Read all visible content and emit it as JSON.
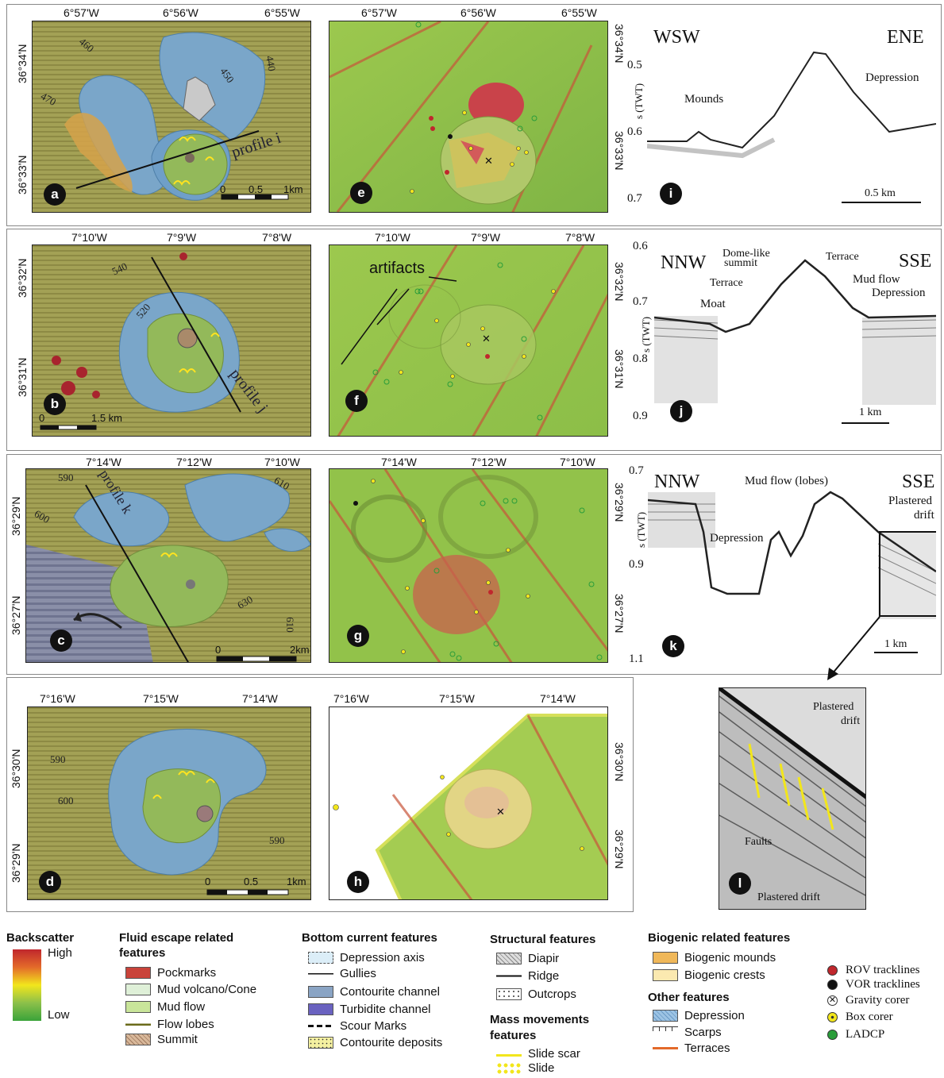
{
  "rows": {
    "row1": {
      "map_a": {
        "label": "a",
        "lon_ticks": [
          "6°57'W",
          "6°56'W",
          "6°55'W"
        ],
        "lat_ticks": [
          "36°34'N",
          "36°33'N"
        ],
        "contours": [
          "460",
          "450",
          "440",
          "470"
        ],
        "profile_label": "profile i",
        "scale": {
          "zero": "0",
          "mid": "0.5",
          "end": "1km"
        }
      },
      "map_e": {
        "label": "e",
        "lon_ticks": [
          "6°57'W",
          "6°56'W",
          "6°55'W"
        ],
        "lat_ticks": [
          "36°34'N",
          "36°33'N"
        ]
      },
      "seis_i": {
        "label": "i",
        "left_dir": "WSW",
        "right_dir": "ENE",
        "axis_title": "s (TWT)",
        "ticks": [
          "0.5",
          "0.6",
          "0.7"
        ],
        "annotations": {
          "mounds": "Mounds",
          "depression": "Depression"
        },
        "scale": "0.5 km"
      }
    },
    "row2": {
      "map_b": {
        "label": "b",
        "lon_ticks": [
          "7°10'W",
          "7°9'W",
          "7°8'W"
        ],
        "lat_ticks": [
          "36°32'N",
          "36°31'N"
        ],
        "contours": [
          "540",
          "520"
        ],
        "profile_label": "profile j",
        "scale": {
          "zero": "0",
          "end": "1.5 km"
        }
      },
      "map_f": {
        "label": "f",
        "lon_ticks": [
          "7°10'W",
          "7°9'W",
          "7°8'W"
        ],
        "lat_ticks": [
          "36°32'N",
          "36°31'N"
        ],
        "annotation": "artifacts"
      },
      "seis_j": {
        "label": "j",
        "left_dir": "NNW",
        "right_dir": "SSE",
        "axis_title": "s (TWT)",
        "ticks": [
          "0.6",
          "0.7",
          "0.8",
          "0.9"
        ],
        "annotations": {
          "dome": "Dome-like",
          "dome2": "summit",
          "terrace1": "Terrace",
          "terrace2": "Terrace",
          "mudflow": "Mud flow",
          "depression": "Depression",
          "moat": "Moat"
        },
        "scale": "1 km"
      }
    },
    "row3": {
      "map_c": {
        "label": "c",
        "lon_ticks": [
          "7°14'W",
          "7°12'W",
          "7°10'W"
        ],
        "lat_ticks": [
          "36°29'N",
          "36°27'N"
        ],
        "contours": [
          "590",
          "610",
          "600",
          "630",
          "610"
        ],
        "profile_label": "profile k",
        "scale": {
          "zero": "0",
          "end": "2km"
        }
      },
      "map_g": {
        "label": "g",
        "lon_ticks": [
          "7°14'W",
          "7°12'W",
          "7°10'W"
        ],
        "lat_ticks": [
          "36°29'N",
          "36°27'N"
        ]
      },
      "seis_k": {
        "label": "k",
        "left_dir": "NNW",
        "right_dir": "SSE",
        "axis_title": "s (TWT)",
        "ticks": [
          "0.7",
          "0.9",
          "1.1"
        ],
        "annotations": {
          "mudflow": "Mud flow (lobes)",
          "plastered1": "Plastered",
          "plastered2": "drift",
          "depression": "Depression"
        },
        "scale": "1 km"
      }
    },
    "row4": {
      "map_d": {
        "label": "d",
        "lon_ticks": [
          "7°16'W",
          "7°15'W",
          "7°14'W"
        ],
        "lat_ticks": [
          "36°30'N",
          "36°29'N"
        ],
        "contours": [
          "590",
          "600",
          "590"
        ],
        "scale": {
          "zero": "0",
          "mid": "0.5",
          "end": "1km"
        }
      },
      "map_h": {
        "label": "h",
        "lon_ticks": [
          "7°16'W",
          "7°15'W",
          "7°14'W"
        ],
        "lat_ticks": [
          "36°30'N",
          "36°29'N"
        ]
      },
      "seis_l": {
        "label": "l",
        "annotations": {
          "plastered_top1": "Plastered",
          "plastered_top2": "drift",
          "faults": "Faults",
          "plastered_bottom": "Plastered drift"
        }
      }
    }
  },
  "legend": {
    "backscatter": {
      "title": "Backscatter",
      "high": "High",
      "low": "Low"
    },
    "fluid": {
      "title1": "Fluid escape related",
      "title2": "features",
      "items": [
        "Pockmarks",
        "Mud volcano/Cone",
        "Mud flow",
        "Flow lobes",
        "Summit"
      ]
    },
    "bottom": {
      "title": "Bottom current features",
      "items": [
        "Depression axis",
        "Gullies",
        "Contourite channel",
        "Turbidite channel",
        "Scour Marks",
        "Contourite deposits"
      ]
    },
    "structural": {
      "title": "Structural features",
      "items": [
        "Diapir",
        "Ridge",
        "Outcrops"
      ]
    },
    "mass": {
      "title1": "Mass movements",
      "title2": "features",
      "items": [
        "Slide scar",
        "Slide"
      ]
    },
    "biogenic": {
      "title": "Biogenic related features",
      "items": [
        "Biogenic mounds",
        "Biogenic crests"
      ]
    },
    "other": {
      "title": "Other features",
      "items": [
        "Depression",
        "Scarps",
        "Terraces"
      ]
    },
    "sampling": {
      "items": [
        "ROV tracklines",
        "VOR tracklines",
        "Gravity corer",
        "Box corer",
        "LADCP"
      ]
    }
  },
  "colors": {
    "terrain": "#9a9a4c",
    "depression_blue": "#6f9fc8",
    "mudflow_green": "#93b95a",
    "backscatter_green": "#8cc04a",
    "backscatter_red": "#c83a2e",
    "rov": "#c0272d",
    "vor": "#111111",
    "box": "#f2e61c",
    "ladcp": "#2a9d3a"
  }
}
